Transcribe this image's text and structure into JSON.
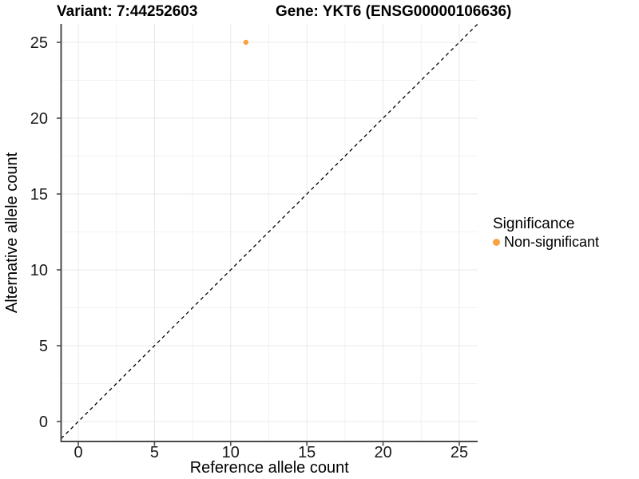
{
  "chart_data": {
    "type": "scatter",
    "titles": [
      "Variant: 7:44252603",
      "Gene: YKT6 (ENSG00000106636)"
    ],
    "xlabel": "Reference allele count",
    "ylabel": "Alternative allele count",
    "xticks": [
      0,
      5,
      10,
      15,
      20,
      25
    ],
    "yticks": [
      0,
      5,
      10,
      15,
      20,
      25
    ],
    "xlim": [
      -1.25,
      26.25
    ],
    "ylim": [
      -1.25,
      26.25
    ],
    "grid": {
      "major": true,
      "minor": true
    },
    "series": [
      {
        "name": "Non-significant",
        "color": "#F9A242",
        "points": [
          {
            "x": 11,
            "y": 25
          }
        ]
      }
    ],
    "abline": {
      "slope": 1,
      "intercept": 0,
      "style": "dashed",
      "color": "#000000"
    },
    "legend": {
      "title": "Significance",
      "position": "right"
    },
    "colors": {
      "grid_major": "#E8E8E8",
      "grid_minor": "#F2F2F2",
      "axis_line": "#4A4A4A",
      "tick_text": "#1A1A1A",
      "title_text": "#000000",
      "background": "#FFFFFF"
    }
  }
}
